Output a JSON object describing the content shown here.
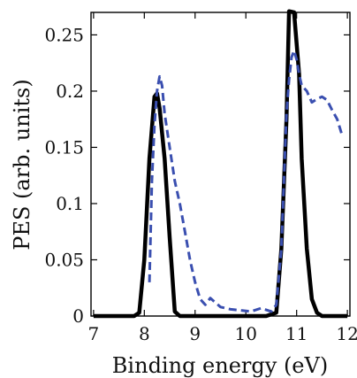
{
  "chart_data": {
    "type": "line",
    "xlabel": "Binding energy (eV)",
    "ylabel": "PES  (arb. units)",
    "xlim": [
      6.95,
      12.05
    ],
    "ylim": [
      0,
      0.27
    ],
    "x_ticks": [
      7,
      8,
      9,
      10,
      11,
      12
    ],
    "x_tick_labels": [
      "7",
      "8",
      "9",
      "10",
      "11",
      "12"
    ],
    "y_ticks": [
      0,
      0.05,
      0.1,
      0.15,
      0.2,
      0.25
    ],
    "y_tick_labels": [
      "0",
      "0.05",
      "0.1",
      "0.15",
      "0.2",
      "0.25"
    ],
    "grid": false,
    "series": [
      {
        "style": "solid",
        "color": "#000000",
        "x": [
          7.0,
          7.8,
          7.9,
          8.0,
          8.1,
          8.2,
          8.25,
          8.3,
          8.4,
          8.5,
          8.6,
          8.7,
          9.0,
          9.5,
          10.0,
          10.4,
          10.6,
          10.7,
          10.8,
          10.85,
          10.95,
          11.05,
          11.1,
          11.2,
          11.3,
          11.4,
          11.5,
          11.8,
          12.0
        ],
        "y": [
          0.0,
          0.0,
          0.003,
          0.05,
          0.14,
          0.195,
          0.198,
          0.185,
          0.14,
          0.07,
          0.004,
          0.0,
          0.0,
          0.0,
          0.0,
          0.0,
          0.003,
          0.06,
          0.175,
          0.271,
          0.27,
          0.215,
          0.14,
          0.06,
          0.015,
          0.003,
          0.0,
          0.0,
          0.0
        ]
      },
      {
        "style": "dashed",
        "color": "#3a4fb0",
        "x": [
          8.1,
          8.15,
          8.2,
          8.25,
          8.3,
          8.35,
          8.4,
          8.5,
          8.6,
          8.7,
          8.8,
          8.9,
          9.0,
          9.1,
          9.2,
          9.3,
          9.4,
          9.5,
          9.7,
          9.9,
          10.1,
          10.3,
          10.5,
          10.6,
          10.7,
          10.75,
          10.8,
          10.85,
          10.9,
          10.95,
          11.0,
          11.05,
          11.1,
          11.2,
          11.3,
          11.4,
          11.5,
          11.6,
          11.7,
          11.8,
          11.9
        ],
        "y": [
          0.03,
          0.12,
          0.17,
          0.2,
          0.213,
          0.205,
          0.18,
          0.15,
          0.12,
          0.1,
          0.075,
          0.05,
          0.03,
          0.015,
          0.01,
          0.016,
          0.012,
          0.008,
          0.006,
          0.005,
          0.004,
          0.007,
          0.004,
          0.01,
          0.06,
          0.12,
          0.18,
          0.21,
          0.23,
          0.236,
          0.228,
          0.215,
          0.205,
          0.2,
          0.19,
          0.193,
          0.195,
          0.192,
          0.183,
          0.175,
          0.16
        ]
      }
    ]
  }
}
